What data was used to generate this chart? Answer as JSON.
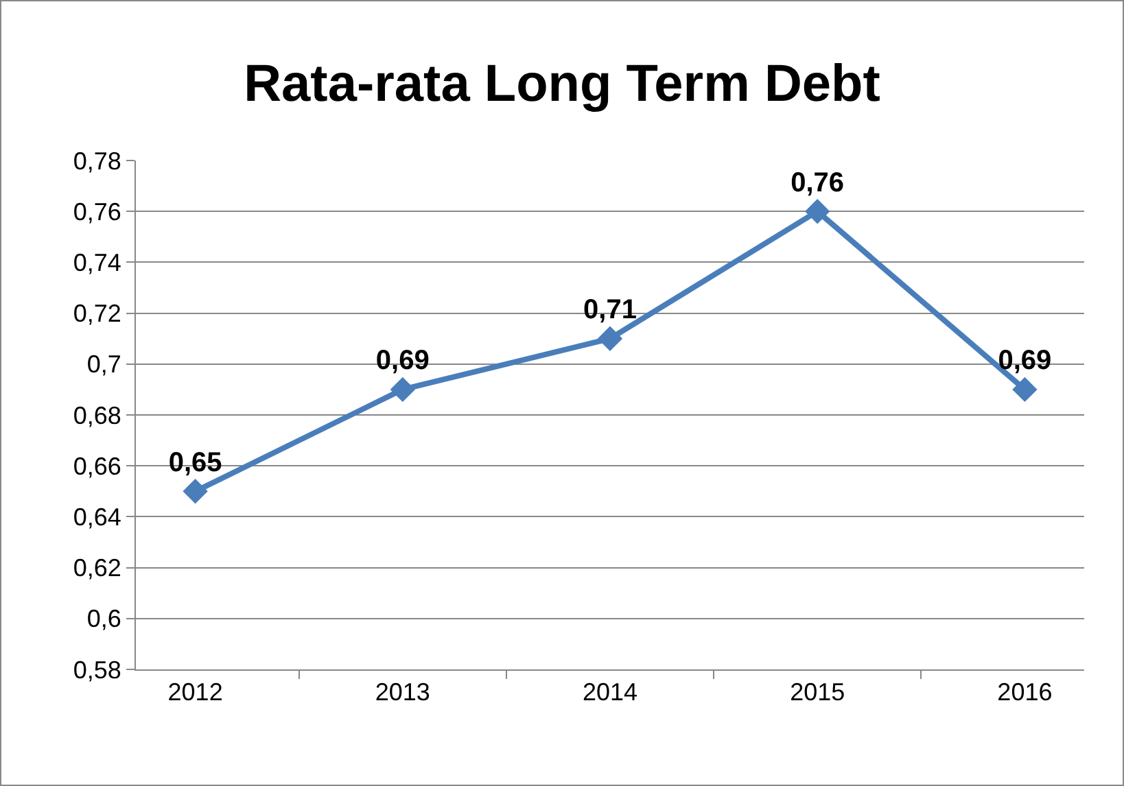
{
  "chart_data": {
    "type": "line",
    "title": "Rata-rata Long Term Debt",
    "categories": [
      "2012",
      "2013",
      "2014",
      "2015",
      "2016"
    ],
    "series": [
      {
        "color": "#4a7ebb",
        "values": [
          0.65,
          0.69,
          0.71,
          0.76,
          0.69
        ],
        "value_labels": [
          "0,65",
          "0,69",
          "0,71",
          "0,76",
          "0,69"
        ]
      }
    ],
    "ylim": [
      0.58,
      0.78
    ],
    "yticks": [
      {
        "value": 0.58,
        "label": "0,58"
      },
      {
        "value": 0.6,
        "label": "0,6"
      },
      {
        "value": 0.62,
        "label": "0,62"
      },
      {
        "value": 0.64,
        "label": "0,64"
      },
      {
        "value": 0.66,
        "label": "0,66"
      },
      {
        "value": 0.68,
        "label": "0,68"
      },
      {
        "value": 0.7,
        "label": "0,7"
      },
      {
        "value": 0.72,
        "label": "0,72"
      },
      {
        "value": 0.74,
        "label": "0,74"
      },
      {
        "value": 0.76,
        "label": "0,76"
      },
      {
        "value": 0.78,
        "label": "0,78"
      }
    ],
    "grid": "y",
    "marker": "diamond",
    "line_style": "solid"
  }
}
